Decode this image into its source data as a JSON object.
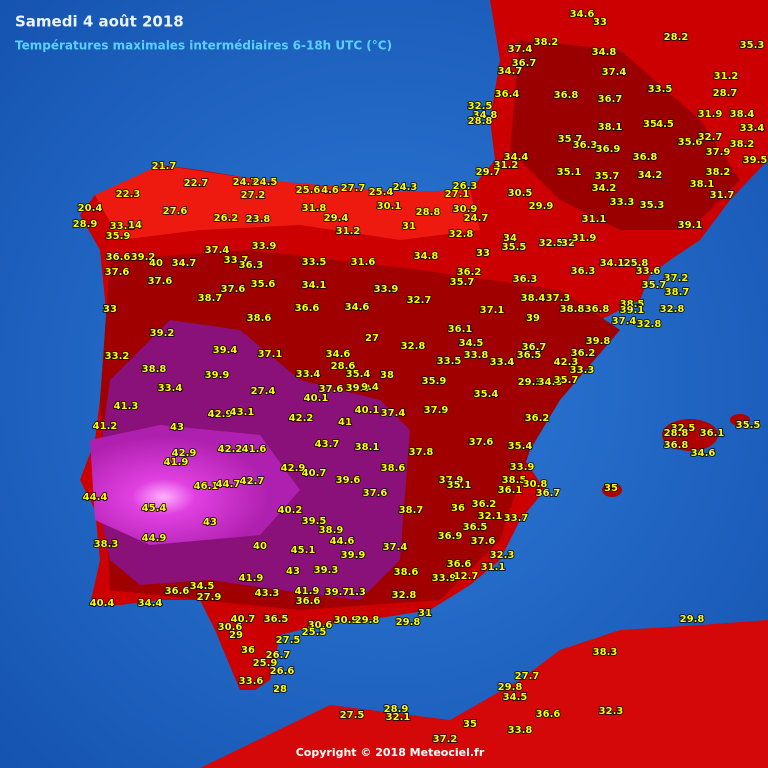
{
  "header": {
    "title": "Samedi 4 août 2018",
    "subtitle": "Températures maximales intermédiaires 6-18h UTC (°C)"
  },
  "footer": {
    "copyright": "Copyright © 2018 Meteociel.fr"
  },
  "temperatures": [
    36.7,
    38.2,
    37.4,
    34.6,
    33,
    34.8,
    28.2,
    35.3,
    34.7,
    36.4,
    36.8,
    36.7,
    37.4,
    33.5,
    31.2,
    28.7,
    32.5,
    34.8,
    28.8,
    35.7,
    36.3,
    38.1,
    36.9,
    35,
    4.5,
    31.9,
    38.4,
    33.4,
    35.6,
    32.7,
    37.9,
    38.2,
    36.8,
    39.5,
    34.4,
    31.2,
    29.7,
    35.1,
    35.7,
    34.2,
    34.2,
    38.2,
    38.1,
    31.7,
    30.5,
    29.9,
    33.3,
    35.3,
    39.1,
    31.1,
    21.7,
    22.7,
    24.7,
    24.5,
    25.6,
    4.6,
    27.7,
    25.4,
    24.3,
    26.3,
    27.1,
    22.3,
    20.4,
    28.9,
    33.1,
    14,
    35.9,
    27.6,
    27.2,
    26.2,
    23.8,
    31.8,
    29.4,
    31.2,
    30.1,
    28.8,
    30.9,
    24.7,
    31,
    32.8,
    34,
    35.5,
    32.5,
    32,
    31.9,
    36.6,
    39.2,
    40,
    34.7,
    37.4,
    33.9,
    33.7,
    36.3,
    33.5,
    31.6,
    34.8,
    33,
    36.2,
    35.7,
    34.1,
    25.8,
    33.6,
    37.2,
    36.3,
    36.3,
    37.6,
    37.6,
    38.7,
    37.6,
    35.6,
    34.1,
    33.9,
    32.7,
    38.4,
    37.3,
    35.7,
    38.7,
    33,
    36.6,
    34.6,
    38.6,
    36.1,
    37.1,
    39,
    38.8,
    36.8,
    38.5,
    39.1,
    37.4,
    32.8,
    32.8,
    39.2,
    27,
    32.8,
    34.5,
    36.7,
    39.8,
    33.2,
    39.4,
    37.1,
    34.6,
    33.8,
    36.5,
    36.2,
    38.8,
    39.9,
    28.6,
    35.4,
    38,
    33.5,
    33.4,
    42.3,
    33.3,
    33.4,
    27.4,
    33.4,
    37.6,
    39.9,
    9.4,
    35.9,
    29.3,
    34.8,
    35.7,
    40.1,
    35.4,
    41.3,
    42.9,
    43.1,
    42.2,
    40.1,
    37.4,
    37.9,
    36.2,
    41.2,
    43,
    41,
    42.2,
    41.6,
    43.7,
    38.1,
    37.8,
    37.6,
    35.4,
    42.9,
    41.9,
    42.9,
    40.7,
    39.6,
    38.6,
    33.9,
    44.4,
    46.1,
    44.7,
    42.7,
    37.6,
    37.9,
    35.1,
    38.5,
    30.8,
    36.1,
    36.7,
    35,
    45.4,
    43,
    40.2,
    38.7,
    36,
    36.2,
    32.1,
    33.7,
    39.5,
    38.9,
    44.6,
    36.9,
    36.5,
    37.6,
    38.3,
    44.9,
    40,
    45.1,
    39.9,
    37.4,
    32.3,
    36.6,
    31.1,
    43,
    39.3,
    41.9,
    38.6,
    33.9,
    12.7,
    34.5,
    36.6,
    27.9,
    43.3,
    41.9,
    39.7,
    1.3,
    32.8,
    40.4,
    34.4,
    36.6,
    31,
    40.7,
    36.5,
    30.9,
    29.8,
    29.8,
    30.6,
    29,
    30.6,
    25.5,
    27.5,
    36,
    26.7,
    25.9,
    26.6,
    33.6,
    28,
    32.5,
    28.8,
    36.1,
    36.8,
    35.5,
    34.6,
    29.8,
    38.3,
    27.7,
    29.8,
    34.5,
    36.6,
    32.3,
    28.9,
    32.1,
    27.5,
    35,
    33.8,
    37.2
  ]
}
